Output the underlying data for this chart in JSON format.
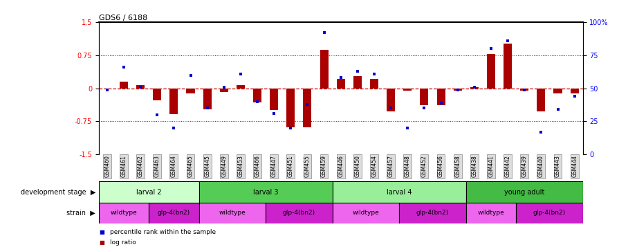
{
  "title": "GDS6 / 6188",
  "samples": [
    "GSM460",
    "GSM461",
    "GSM462",
    "GSM463",
    "GSM464",
    "GSM465",
    "GSM445",
    "GSM449",
    "GSM453",
    "GSM466",
    "GSM447",
    "GSM451",
    "GSM455",
    "GSM459",
    "GSM446",
    "GSM450",
    "GSM454",
    "GSM457",
    "GSM448",
    "GSM452",
    "GSM456",
    "GSM458",
    "GSM438",
    "GSM441",
    "GSM442",
    "GSM439",
    "GSM440",
    "GSM443",
    "GSM444"
  ],
  "log_ratio": [
    0.0,
    0.15,
    0.08,
    -0.28,
    -0.58,
    -0.12,
    -0.48,
    -0.08,
    0.08,
    -0.32,
    -0.5,
    -0.88,
    -0.88,
    0.88,
    0.22,
    0.28,
    0.22,
    -0.52,
    -0.05,
    -0.38,
    -0.38,
    -0.05,
    0.02,
    0.78,
    1.02,
    -0.05,
    -0.52,
    -0.12,
    -0.12
  ],
  "percentile": [
    49,
    66,
    51,
    30,
    20,
    60,
    35,
    51,
    61,
    40,
    31,
    20,
    38,
    92,
    58,
    63,
    61,
    35,
    20,
    35,
    39,
    49,
    51,
    80,
    86,
    49,
    17,
    34,
    44
  ],
  "dev_stages": [
    {
      "label": "larval 2",
      "start": 0,
      "end": 6,
      "color": "#ccffcc"
    },
    {
      "label": "larval 3",
      "start": 6,
      "end": 14,
      "color": "#55cc55"
    },
    {
      "label": "larval 4",
      "start": 14,
      "end": 22,
      "color": "#99ee99"
    },
    {
      "label": "young adult",
      "start": 22,
      "end": 29,
      "color": "#44bb44"
    }
  ],
  "strains": [
    {
      "label": "wildtype",
      "start": 0,
      "end": 3,
      "color": "#ee66ee"
    },
    {
      "label": "glp-4(bn2)",
      "start": 3,
      "end": 6,
      "color": "#cc22cc"
    },
    {
      "label": "wildtype",
      "start": 6,
      "end": 10,
      "color": "#ee66ee"
    },
    {
      "label": "glp-4(bn2)",
      "start": 10,
      "end": 14,
      "color": "#cc22cc"
    },
    {
      "label": "wildtype",
      "start": 14,
      "end": 18,
      "color": "#ee66ee"
    },
    {
      "label": "glp-4(bn2)",
      "start": 18,
      "end": 22,
      "color": "#cc22cc"
    },
    {
      "label": "wildtype",
      "start": 22,
      "end": 25,
      "color": "#ee66ee"
    },
    {
      "label": "glp-4(bn2)",
      "start": 25,
      "end": 29,
      "color": "#cc22cc"
    }
  ],
  "ylim_left": [
    -1.5,
    1.5
  ],
  "ylim_right": [
    0,
    100
  ],
  "yticks_left": [
    -1.5,
    -0.75,
    0,
    0.75,
    1.5
  ],
  "yticks_right": [
    0,
    25,
    50,
    75,
    100
  ],
  "ytick_labels_left": [
    "-1.5",
    "-0.75",
    "0",
    "0.75",
    "1.5"
  ],
  "ytick_labels_right": [
    "0",
    "25",
    "50",
    "75",
    "100%"
  ],
  "bar_color": "#aa0000",
  "square_color": "#0000cc",
  "zero_line_color": "#cc0000",
  "dotted_line_color": "#333333",
  "bg_color": "#ffffff",
  "dev_stage_label": "development stage",
  "strain_label": "strain",
  "legend_items": [
    {
      "label": "log ratio",
      "color": "#aa0000"
    },
    {
      "label": "percentile rank within the sample",
      "color": "#0000cc"
    }
  ]
}
